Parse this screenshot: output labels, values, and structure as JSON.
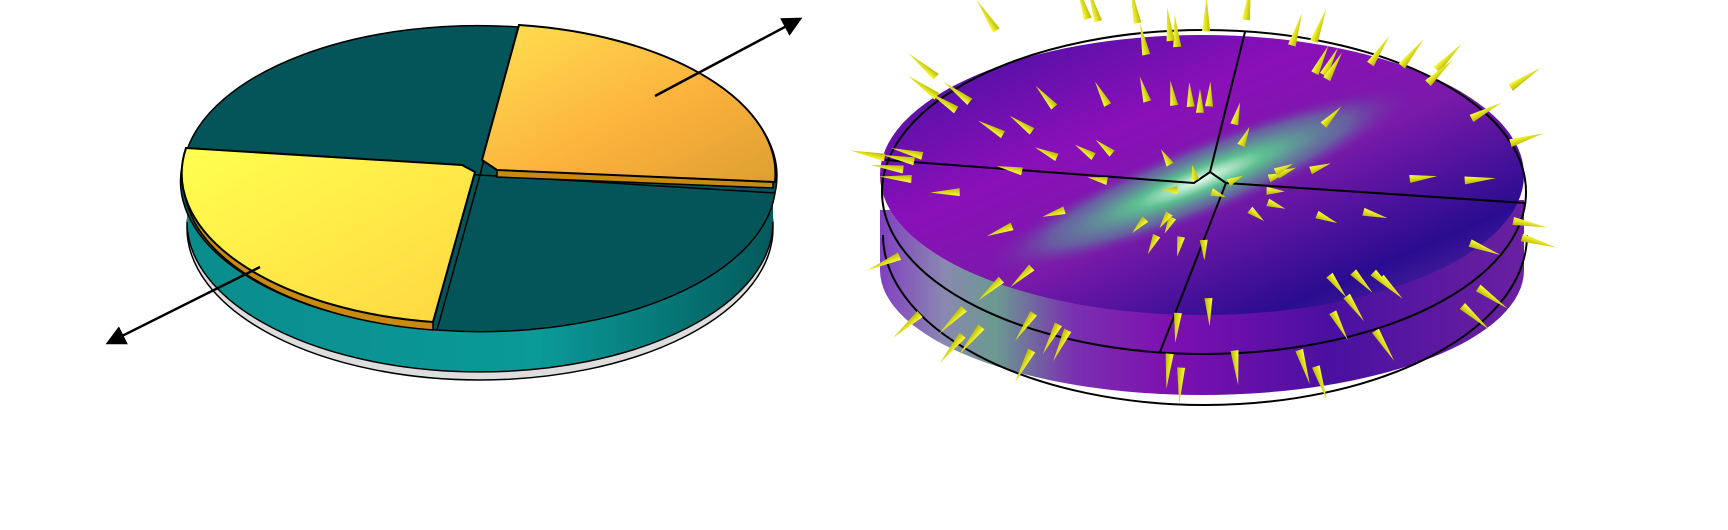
{
  "colors": {
    "teal_dark": "#03555a",
    "teal_side": "#0a8f8f",
    "yellow": "#ffff55",
    "orange": "#fbb43c",
    "purple": "#7a1fb0",
    "indigo": "#2a0c8c",
    "green_glow": "#9ce3b4",
    "cone": "#e8e800"
  },
  "icons": [
    "arrow-icon",
    "cone-arrow-icon"
  ]
}
